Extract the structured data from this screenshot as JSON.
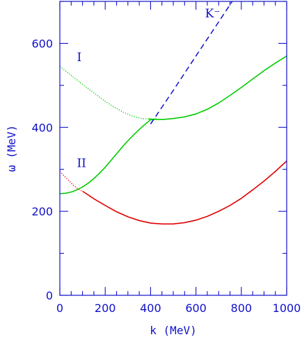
{
  "chart_data": {
    "type": "line",
    "xlabel": "k   (MeV)",
    "ylabel": "ω  (MeV)",
    "xlim": [
      0,
      1000
    ],
    "ylim": [
      0,
      700
    ],
    "x_ticks": [
      0,
      200,
      400,
      600,
      800,
      1000
    ],
    "y_ticks": [
      0,
      200,
      400,
      600
    ],
    "grid": false,
    "annotations": [
      {
        "text": "I",
        "x": 75,
        "y": 558
      },
      {
        "text": "II",
        "x": 75,
        "y": 305
      },
      {
        "text": "K⁻",
        "x": 640,
        "y": 662
      }
    ],
    "series": [
      {
        "label_ref": "I",
        "color": "#00cc00",
        "style": "dotted",
        "x": [
          0,
          40,
          80,
          120,
          160,
          200,
          240,
          280,
          320,
          360,
          390
        ],
        "y": [
          545,
          528,
          511,
          494,
          478,
          462,
          448,
          436,
          427,
          421,
          420
        ]
      },
      {
        "label_ref": "I",
        "color": "#00cc00",
        "style": "solid",
        "x": [
          390,
          420,
          460,
          500,
          550,
          600,
          650,
          700,
          750,
          800,
          850,
          900,
          950,
          1000
        ],
        "y": [
          420,
          419,
          419,
          421,
          425,
          432,
          443,
          458,
          476,
          495,
          515,
          535,
          553,
          570
        ]
      },
      {
        "label_ref": "II",
        "color": "#00cc00",
        "style": "solid",
        "x": [
          0,
          25,
          50,
          75,
          100,
          125,
          150,
          175,
          200,
          225,
          250,
          275,
          300,
          325,
          350,
          375,
          400,
          425
        ],
        "y": [
          242,
          243,
          246,
          251,
          258,
          267,
          278,
          291,
          305,
          321,
          337,
          353,
          368,
          382,
          395,
          407,
          418,
          420
        ]
      },
      {
        "label_ref": "II",
        "color": "#e00000",
        "style": "dotted",
        "x": [
          0,
          20,
          40,
          60,
          80,
          100
        ],
        "y": [
          295,
          284,
          273,
          262,
          253,
          248
        ]
      },
      {
        "label_ref": "II",
        "color": "#e00000",
        "style": "solid",
        "x": [
          100,
          150,
          200,
          250,
          300,
          350,
          400,
          450,
          500,
          550,
          600,
          650,
          700,
          750,
          800,
          850,
          900,
          950,
          1000
        ],
        "y": [
          248,
          230,
          214,
          199,
          187,
          178,
          172,
          170,
          170,
          173,
          179,
          188,
          200,
          214,
          231,
          251,
          272,
          295,
          320
        ]
      },
      {
        "label_ref": "K⁻",
        "color": "#0000cc",
        "style": "dashed",
        "x": [
          400,
          500,
          600,
          700,
          760
        ],
        "y": [
          408,
          488,
          570,
          651,
          700
        ]
      }
    ]
  }
}
